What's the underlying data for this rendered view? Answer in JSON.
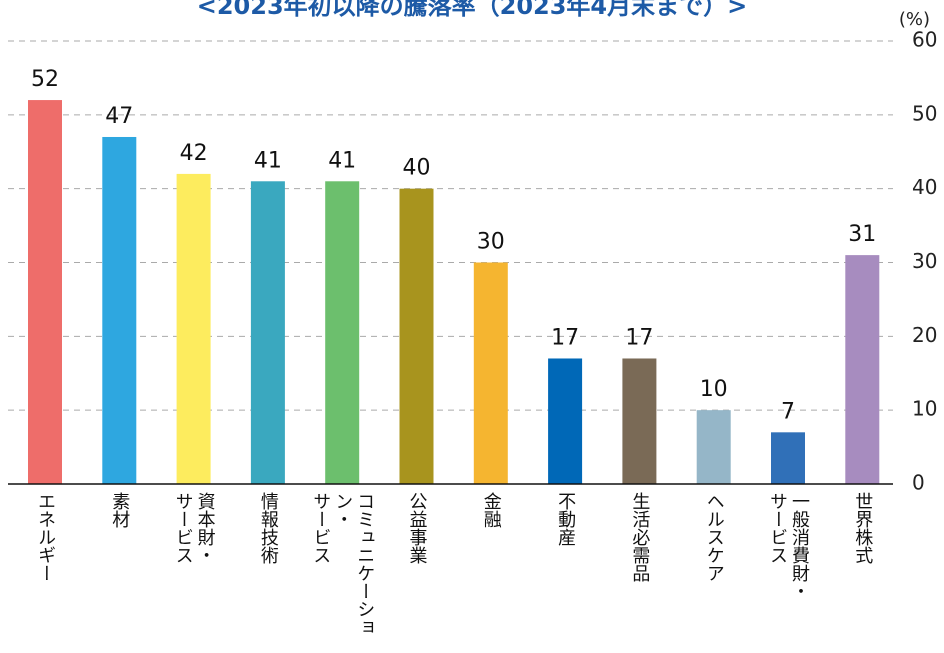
{
  "chart_data": {
    "type": "bar",
    "title": "<2023年初以降の騰落率（2023年4月末まで）>",
    "unit": "(%)",
    "categories": [
      "エネルギー",
      "素材",
      "資本財・\nサービス",
      "情報技術",
      "コミュニケーション・\nサービス",
      "公益事業",
      "金融",
      "不動産",
      "生活必需品",
      "ヘルスケア",
      "一般消費財・\nサービス",
      "世界株式"
    ],
    "values": [
      52,
      47,
      42,
      41,
      41,
      40,
      30,
      17,
      17,
      10,
      7,
      31
    ],
    "colors": [
      "#ee6d6a",
      "#2ea7e0",
      "#fdec5e",
      "#3aa8bf",
      "#6cbf6d",
      "#a8941e",
      "#f5b530",
      "#0068b7",
      "#7a6a56",
      "#95b6c8",
      "#3070b8",
      "#a78cbf"
    ],
    "ylim": [
      0,
      60
    ],
    "yticks": [
      0,
      10,
      20,
      30,
      40,
      50,
      60
    ],
    "grid": true
  }
}
